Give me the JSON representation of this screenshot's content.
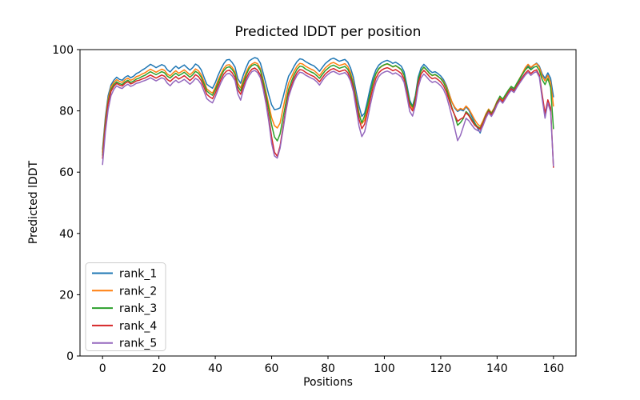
{
  "chart_data": {
    "type": "line",
    "title": "Predicted lDDT per position",
    "xlabel": "Positions",
    "ylabel": "Predicted lDDT",
    "xlim": [
      -8,
      168
    ],
    "ylim": [
      0,
      100
    ],
    "x_ticks": [
      0,
      20,
      40,
      60,
      80,
      100,
      120,
      140,
      160
    ],
    "y_ticks": [
      0,
      20,
      40,
      60,
      80,
      100
    ],
    "x_start": 0,
    "x_step": 1,
    "grid": false,
    "legend_position": "lower left",
    "series": [
      {
        "name": "rank_1",
        "color": "#1f77b4",
        "values": [
          67.5,
          78,
          85,
          88.5,
          90,
          91,
          90.3,
          90,
          91,
          91.5,
          90.8,
          91.3,
          92.2,
          92.6,
          93.3,
          93.8,
          94.5,
          95.2,
          94.7,
          94.1,
          94.6,
          95.1,
          94.7,
          93.4,
          92.7,
          93.8,
          94.6,
          93.8,
          94.4,
          95,
          94.1,
          93.3,
          94.1,
          95.3,
          94.7,
          93.4,
          91,
          88.7,
          88,
          87.4,
          89.2,
          91.6,
          93.6,
          95.4,
          96.6,
          96.8,
          95.8,
          94.3,
          90.5,
          89,
          91.8,
          94.2,
          96.3,
          96.9,
          97.4,
          97.1,
          95.6,
          92.3,
          88.8,
          85.2,
          82,
          80.4,
          80.6,
          81,
          84.2,
          88,
          91.3,
          92.8,
          94.6,
          96.1,
          97,
          96.8,
          96.1,
          95.6,
          95.1,
          94.7,
          93.9,
          92.9,
          94.2,
          95.4,
          96.2,
          96.9,
          97.2,
          96.7,
          96.2,
          96.5,
          96.8,
          95.9,
          94,
          91,
          86.2,
          81.6,
          78.2,
          79.3,
          83.2,
          87.5,
          91,
          93.4,
          94.9,
          95.7,
          96.2,
          96.5,
          96.1,
          95.5,
          95.9,
          95.3,
          94.6,
          92.8,
          88.5,
          83.5,
          81.5,
          85,
          91,
          94,
          95.2,
          94.3,
          93.2,
          92.5,
          92.8,
          92.2,
          91.4,
          90.2,
          88.3,
          85.6,
          82.8,
          80.9,
          79.8,
          80.4,
          80,
          81.3,
          80.2,
          78.2,
          76.3,
          74.5,
          72.8,
          75.6,
          78.4,
          80.2,
          78.9,
          80.6,
          82.9,
          84.2,
          83.1,
          84.8,
          86.3,
          87.6,
          86.9,
          88.6,
          90.3,
          91.9,
          93.6,
          94.8,
          93.9,
          94.9,
          95.6,
          94.6,
          92.1,
          90.6,
          92.4,
          90.6,
          84.6
        ]
      },
      {
        "name": "rank_2",
        "color": "#ff7f0e",
        "values": [
          66.5,
          77,
          84,
          87.8,
          89.3,
          90.2,
          89.6,
          89.3,
          90.2,
          90.7,
          90,
          90.4,
          91.2,
          91.5,
          92,
          92.4,
          93,
          93.6,
          93.1,
          92.6,
          93.1,
          93.6,
          93.2,
          92,
          91.4,
          92.4,
          93.1,
          92.3,
          92.8,
          93.4,
          92.6,
          91.8,
          92.6,
          93.7,
          93.1,
          91.8,
          89.6,
          87.2,
          86.4,
          85.8,
          87.6,
          90,
          92,
          93.8,
          94.9,
          95.1,
          94.2,
          92.7,
          89,
          87.5,
          90.2,
          92.6,
          94.5,
          95.3,
          95.8,
          95.4,
          93.8,
          90.2,
          86.2,
          82,
          77.8,
          75.2,
          74.4,
          76,
          80.5,
          85,
          89,
          91,
          93,
          94.6,
          95.5,
          95.3,
          94.6,
          94.1,
          93.6,
          93.2,
          92.4,
          91.5,
          92.8,
          94,
          94.8,
          95.5,
          95.8,
          95.3,
          94.8,
          95.1,
          95.4,
          94.5,
          92.5,
          89.3,
          84.5,
          79.5,
          75.8,
          77,
          81,
          85.5,
          89.3,
          92,
          93.6,
          94.5,
          95,
          95.3,
          94.9,
          94.3,
          94.7,
          94.1,
          93.4,
          91.6,
          87.3,
          82.5,
          80.8,
          84.2,
          90,
          93,
          94.2,
          93.3,
          92.2,
          91.5,
          91.8,
          91.2,
          90.6,
          89.6,
          87.9,
          85.4,
          82.9,
          81.2,
          80.1,
          80.8,
          80.4,
          81.6,
          80.6,
          78.9,
          77.2,
          75.8,
          74.9,
          76.8,
          79,
          80.6,
          79.4,
          81,
          83.2,
          84.5,
          83.5,
          85.1,
          86.6,
          87.9,
          87.2,
          88.9,
          90.6,
          92.3,
          94.1,
          95.2,
          94.2,
          95,
          95.4,
          94.2,
          91.4,
          89.8,
          91.6,
          89.2,
          81.6
        ]
      },
      {
        "name": "rank_3",
        "color": "#2ca02c",
        "values": [
          65.5,
          76,
          83.2,
          87,
          88.6,
          89.5,
          88.9,
          88.6,
          89.5,
          90,
          89.3,
          89.7,
          90.4,
          90.7,
          91.2,
          91.6,
          92.2,
          92.8,
          92.3,
          91.8,
          92.3,
          92.8,
          92.4,
          91.3,
          90.7,
          91.6,
          92.3,
          91.5,
          92,
          92.6,
          91.8,
          91,
          91.8,
          92.9,
          92.3,
          91,
          88.8,
          86.5,
          85.7,
          85.1,
          86.9,
          89.2,
          91.3,
          93.1,
          94.1,
          94.4,
          93.5,
          92,
          88,
          86.5,
          89.3,
          91.8,
          93.8,
          94.8,
          95.2,
          94.7,
          93.2,
          89.4,
          85.2,
          80.5,
          75.5,
          71.5,
          70.2,
          72.5,
          77.5,
          82.5,
          87,
          89.5,
          91.8,
          93.6,
          94.6,
          94.4,
          93.7,
          93.2,
          92.7,
          92.3,
          91.5,
          90.6,
          91.9,
          93.1,
          93.9,
          94.6,
          94.9,
          94.4,
          93.9,
          94.2,
          94.5,
          93.6,
          91.7,
          88.6,
          83.8,
          78.8,
          76.1,
          78.4,
          81.8,
          85.8,
          89.6,
          92.2,
          93.8,
          94.6,
          95.1,
          95.4,
          95,
          94.4,
          94.8,
          94.2,
          93.5,
          91.7,
          87.5,
          82.8,
          81.3,
          84.6,
          90.2,
          93.1,
          94.3,
          93.4,
          92.3,
          91.6,
          91.9,
          91.3,
          90.5,
          89.3,
          87.3,
          84.3,
          81,
          78.4,
          75.3,
          76.2,
          77.5,
          79.8,
          78.8,
          77.2,
          75.9,
          74.9,
          74.3,
          76.2,
          78.6,
          80.3,
          79.1,
          80.7,
          83,
          84.8,
          83.8,
          85.3,
          86.8,
          88,
          87.3,
          89,
          90.5,
          92,
          93.4,
          94.3,
          93.4,
          94.2,
          94.6,
          93.2,
          90.2,
          88.6,
          90.6,
          87.6,
          74.2
        ]
      },
      {
        "name": "rank_4",
        "color": "#d62728",
        "values": [
          64.5,
          75,
          82.5,
          86.4,
          88,
          89,
          88.4,
          88.1,
          89,
          89.5,
          88.8,
          89.2,
          89.8,
          90,
          90.4,
          90.7,
          91.2,
          91.7,
          91.2,
          90.7,
          91.2,
          91.7,
          91.3,
          90.2,
          89.6,
          90.5,
          91.2,
          90.4,
          90.9,
          91.5,
          90.7,
          89.9,
          90.7,
          91.8,
          91.2,
          89.9,
          87.7,
          85.4,
          84.6,
          84,
          85.8,
          88.1,
          90.2,
          92,
          93,
          93.3,
          92.4,
          90.9,
          86.9,
          85.4,
          88.2,
          90.7,
          92.5,
          93.6,
          94,
          93.3,
          91.7,
          88,
          83.5,
          78,
          71.5,
          66.5,
          65.2,
          68.5,
          74.5,
          80.5,
          85.5,
          88.3,
          90.7,
          92.5,
          93.5,
          93.3,
          92.6,
          92.1,
          91.6,
          91.2,
          90.4,
          89.5,
          90.8,
          92,
          92.8,
          93.5,
          93.8,
          93.3,
          92.8,
          93.1,
          93.4,
          92.5,
          90.6,
          87.5,
          82.5,
          77.3,
          74.2,
          75.7,
          79.5,
          83.8,
          87.8,
          90.7,
          92.4,
          93.3,
          93.8,
          94.1,
          93.7,
          93.1,
          93.5,
          92.9,
          92.2,
          90.4,
          86.2,
          81.5,
          80,
          83.4,
          89,
          92,
          93.2,
          92.3,
          91.2,
          90.5,
          90.8,
          90.2,
          89.4,
          88.2,
          86.2,
          83.4,
          80.6,
          78.6,
          76.6,
          77.3,
          77.8,
          79.4,
          78.4,
          76.8,
          75.4,
          74.6,
          74,
          75.9,
          78.2,
          79.9,
          78.7,
          80.3,
          82.5,
          84,
          83,
          84.5,
          86,
          87.2,
          86.5,
          88.1,
          89.6,
          91,
          92.3,
          93.2,
          92.2,
          93,
          93.4,
          91.7,
          85.4,
          79.2,
          83.6,
          81,
          61.6
        ]
      },
      {
        "name": "rank_5",
        "color": "#9467bd",
        "values": [
          62.5,
          73,
          80.5,
          85,
          87,
          88.2,
          87.6,
          87.3,
          88.2,
          88.7,
          88,
          88.4,
          89,
          89.2,
          89.6,
          89.9,
          90.3,
          90.8,
          90.3,
          89.8,
          90.3,
          90.8,
          90.4,
          89,
          88.2,
          89.3,
          90,
          89.2,
          89.7,
          90.3,
          89.5,
          88.7,
          89.5,
          90.6,
          90,
          88.7,
          86.4,
          84,
          83.2,
          82.6,
          84.6,
          87,
          89.2,
          91,
          92,
          92.3,
          91.4,
          89.9,
          85.5,
          83.5,
          87,
          89.7,
          91.6,
          92.8,
          93.2,
          92.5,
          90.8,
          87,
          82.3,
          76.5,
          69.5,
          65.3,
          64.6,
          67.8,
          73.5,
          79.5,
          84.5,
          87.3,
          89.8,
          91.6,
          92.6,
          92.4,
          91.7,
          91.2,
          90.7,
          90.3,
          89.5,
          88.4,
          89.9,
          91.1,
          91.9,
          92.6,
          92.9,
          92.4,
          91.9,
          92.2,
          92.5,
          91.6,
          89.7,
          86.3,
          80.8,
          75,
          71.6,
          73.2,
          77.2,
          81.8,
          86,
          89.3,
          91.2,
          92.2,
          92.7,
          93,
          92.6,
          92,
          92.4,
          91.8,
          91.1,
          89.3,
          84.8,
          79.8,
          78.3,
          81.8,
          87.6,
          90.8,
          92,
          91.1,
          90,
          89.3,
          89.6,
          89,
          88.2,
          87,
          84.8,
          81.6,
          78,
          74.2,
          70.3,
          72,
          74.8,
          77.6,
          76.8,
          75.4,
          74.2,
          73.6,
          73.2,
          75.2,
          77.6,
          79.4,
          78.2,
          79.8,
          82,
          83.5,
          82.5,
          84,
          85.5,
          86.7,
          86,
          87.6,
          89,
          90.4,
          91.7,
          92.6,
          91.6,
          92.4,
          92.8,
          91,
          84,
          77.6,
          82.6,
          79.6,
          62
        ]
      }
    ]
  }
}
